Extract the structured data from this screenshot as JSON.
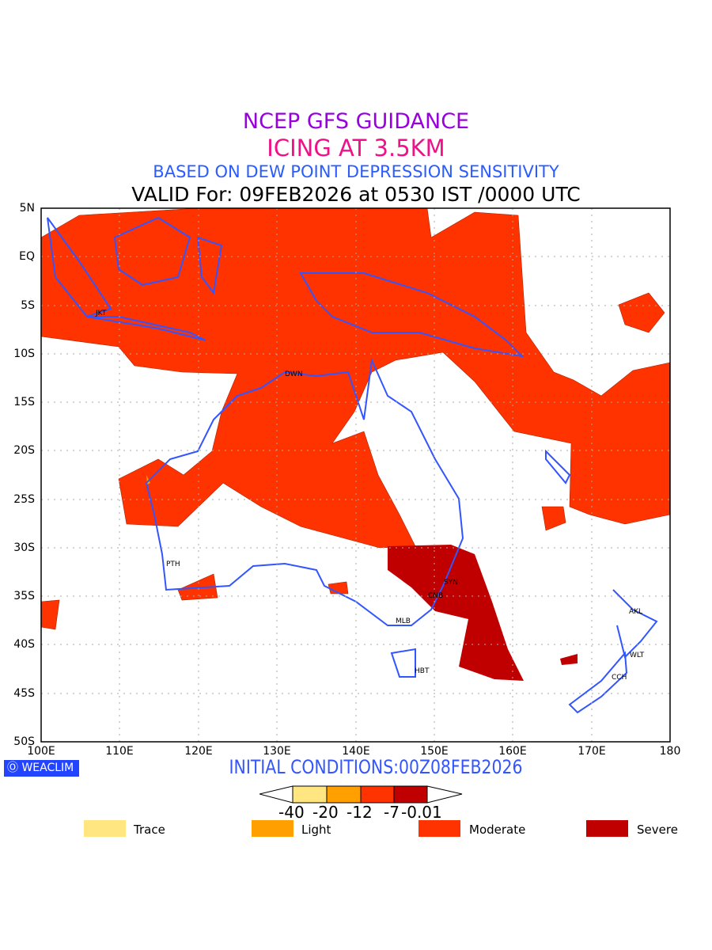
{
  "title": {
    "line1": "NCEP GFS GUIDANCE",
    "line2": "ICING AT 3.5KM",
    "line3": "BASED ON DEW POINT DEPRESSION SENSITIVITY",
    "line4": "VALID For: 09FEB2026 at 0530 IST /0000 UTC"
  },
  "axes": {
    "lat_labels": [
      "5N",
      "EQ",
      "5S",
      "10S",
      "15S",
      "20S",
      "25S",
      "30S",
      "35S",
      "40S",
      "45S",
      "50S"
    ],
    "lon_labels": [
      "100E",
      "110E",
      "120E",
      "130E",
      "140E",
      "150E",
      "160E",
      "170E",
      "180"
    ]
  },
  "cities": [
    "JKT",
    "DWN",
    "PTH",
    "SYN",
    "CNB",
    "MLB",
    "HBT",
    "AKL",
    "WLT",
    "CCH"
  ],
  "logo": "WEACLIM",
  "initial_conditions": "INITIAL CONDITIONS:00Z08FEB2026",
  "colorbar": {
    "labels": [
      "-40",
      "-20",
      "-12",
      "-7",
      "-0.01"
    ],
    "colors": [
      "#ffe680",
      "#ffa000",
      "#ff3300",
      "#c00000"
    ]
  },
  "legend": [
    {
      "label": "Trace",
      "color": "#ffe680"
    },
    {
      "label": "Light",
      "color": "#ffa000"
    },
    {
      "label": "Moderate",
      "color": "#ff3300"
    },
    {
      "label": "Severe",
      "color": "#c00000"
    }
  ],
  "colors": {
    "coast": "#3355ff",
    "grid": "#aaaaaa"
  }
}
